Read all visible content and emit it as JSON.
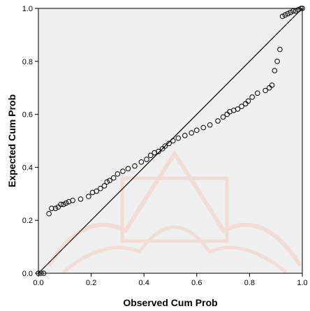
{
  "chart_data": {
    "type": "scatter",
    "title": "",
    "xlabel": "Observed Cum Prob",
    "ylabel": "Expected Cum Prob",
    "xlim": [
      0.0,
      1.0
    ],
    "ylim": [
      0.0,
      1.0
    ],
    "x_ticks": [
      "0.0",
      "0.2",
      "0.4",
      "0.6",
      "0.8",
      "1.0"
    ],
    "y_ticks": [
      "0.0",
      "0.2",
      "0.4",
      "0.6",
      "0.8",
      "1.0"
    ],
    "grid": false,
    "legend": "none",
    "plot_background": "#f0f0f0",
    "marker_color": "#000000",
    "reference_line": {
      "from": [
        0,
        0
      ],
      "to": [
        1,
        1
      ],
      "color": "#000000"
    },
    "points": [
      [
        0.0,
        0.0
      ],
      [
        0.01,
        0.0
      ],
      [
        0.02,
        0.0
      ],
      [
        0.04,
        0.225
      ],
      [
        0.05,
        0.245
      ],
      [
        0.065,
        0.245
      ],
      [
        0.075,
        0.25
      ],
      [
        0.085,
        0.26
      ],
      [
        0.095,
        0.26
      ],
      [
        0.105,
        0.265
      ],
      [
        0.115,
        0.27
      ],
      [
        0.13,
        0.275
      ],
      [
        0.16,
        0.28
      ],
      [
        0.19,
        0.29
      ],
      [
        0.205,
        0.305
      ],
      [
        0.22,
        0.31
      ],
      [
        0.235,
        0.32
      ],
      [
        0.25,
        0.33
      ],
      [
        0.26,
        0.345
      ],
      [
        0.27,
        0.35
      ],
      [
        0.285,
        0.36
      ],
      [
        0.3,
        0.375
      ],
      [
        0.32,
        0.385
      ],
      [
        0.34,
        0.395
      ],
      [
        0.365,
        0.405
      ],
      [
        0.39,
        0.42
      ],
      [
        0.41,
        0.43
      ],
      [
        0.425,
        0.445
      ],
      [
        0.44,
        0.455
      ],
      [
        0.455,
        0.46
      ],
      [
        0.47,
        0.47
      ],
      [
        0.48,
        0.48
      ],
      [
        0.495,
        0.49
      ],
      [
        0.51,
        0.5
      ],
      [
        0.53,
        0.51
      ],
      [
        0.555,
        0.52
      ],
      [
        0.58,
        0.53
      ],
      [
        0.6,
        0.54
      ],
      [
        0.625,
        0.55
      ],
      [
        0.65,
        0.56
      ],
      [
        0.68,
        0.575
      ],
      [
        0.7,
        0.59
      ],
      [
        0.715,
        0.6
      ],
      [
        0.725,
        0.61
      ],
      [
        0.74,
        0.615
      ],
      [
        0.755,
        0.62
      ],
      [
        0.77,
        0.63
      ],
      [
        0.785,
        0.64
      ],
      [
        0.795,
        0.65
      ],
      [
        0.81,
        0.665
      ],
      [
        0.83,
        0.68
      ],
      [
        0.86,
        0.69
      ],
      [
        0.875,
        0.7
      ],
      [
        0.885,
        0.71
      ],
      [
        0.895,
        0.765
      ],
      [
        0.905,
        0.8
      ],
      [
        0.915,
        0.845
      ],
      [
        0.925,
        0.97
      ],
      [
        0.935,
        0.975
      ],
      [
        0.945,
        0.98
      ],
      [
        0.955,
        0.985
      ],
      [
        0.965,
        0.99
      ],
      [
        0.975,
        0.99
      ],
      [
        0.985,
        0.995
      ],
      [
        0.995,
        1.0
      ],
      [
        1.0,
        1.0
      ]
    ]
  }
}
